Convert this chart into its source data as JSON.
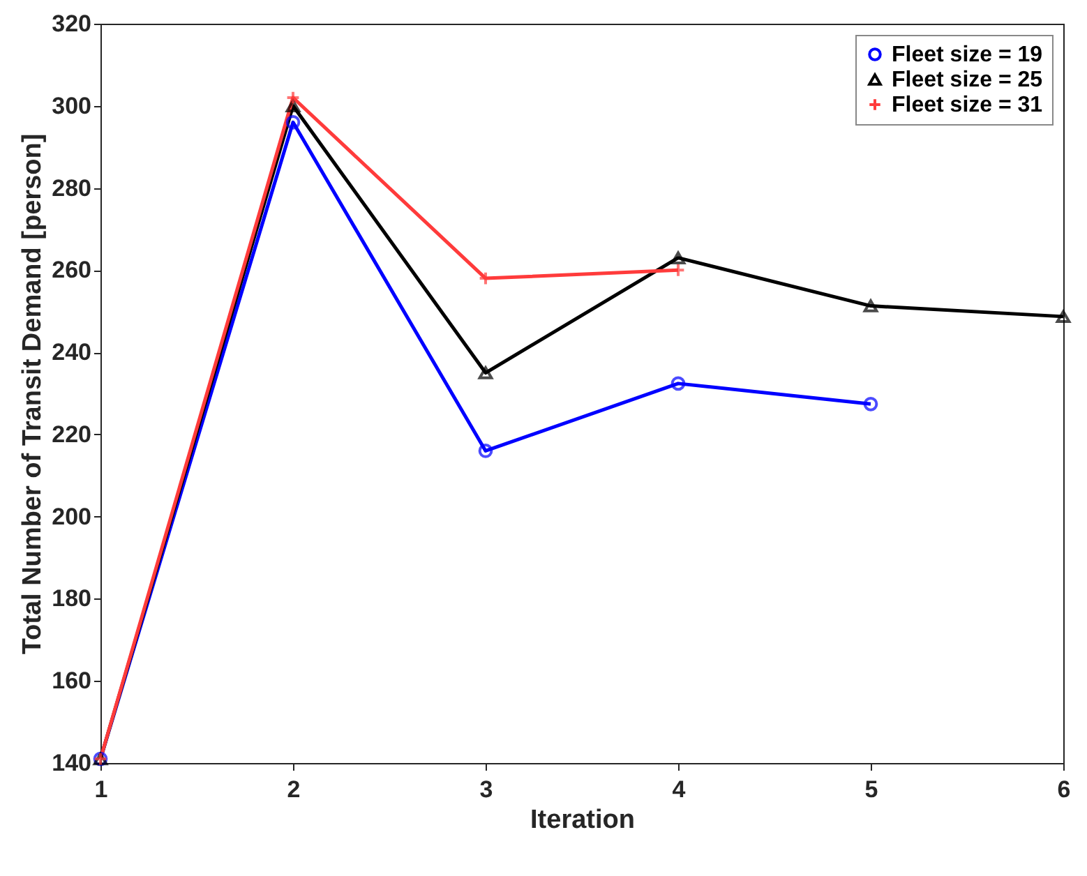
{
  "chart_data": {
    "type": "line",
    "xlabel": "Iteration",
    "ylabel": "Total Number of Transit Demand [person]",
    "x": [
      1,
      2,
      3,
      4,
      5,
      6
    ],
    "xlim": [
      1,
      6
    ],
    "xticks": [
      1,
      2,
      3,
      4,
      5,
      6
    ],
    "ylim": [
      140,
      320
    ],
    "yticks": [
      140,
      160,
      180,
      200,
      220,
      240,
      260,
      280,
      300,
      320
    ],
    "grid": false,
    "legend": "top right",
    "line_style": "solid",
    "series": [
      {
        "name": "Fleet size = 19",
        "color": "#0000ff",
        "marker": "circle",
        "values": [
          141,
          296,
          216,
          232.4,
          227.4,
          null
        ]
      },
      {
        "name": "Fleet size = 25",
        "color": "#000000",
        "marker": "triangle",
        "values": [
          141,
          300,
          235,
          263,
          251.3,
          248.7
        ]
      },
      {
        "name": "Fleet size = 31",
        "color": "#ff3b3b",
        "marker": "cross",
        "values": [
          141,
          302,
          258,
          260,
          null,
          null
        ]
      }
    ]
  }
}
